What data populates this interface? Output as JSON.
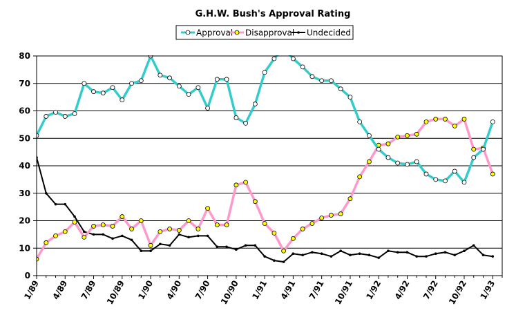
{
  "chart_data": {
    "type": "line",
    "title": "G.H.W. Bush's Approval Rating",
    "xlabel": "",
    "ylabel": "",
    "ylim": [
      0,
      80
    ],
    "yticks": [
      0,
      10,
      20,
      30,
      40,
      50,
      60,
      70,
      80
    ],
    "grid": true,
    "legend_position": "top-center",
    "x_tick_labels": [
      "1/89",
      "4/89",
      "7/89",
      "10/89",
      "1/90",
      "4/90",
      "7/90",
      "10/90",
      "1/91",
      "4/91",
      "7/91",
      "10/91",
      "1/92",
      "4/92",
      "7/92",
      "10/92",
      "1/93"
    ],
    "series": [
      {
        "name": "Approval",
        "color": "#33cccc",
        "marker": "circle",
        "marker_fill": "#ffffff",
        "points": [
          [
            0,
            51
          ],
          [
            1,
            58
          ],
          [
            2,
            59.5
          ],
          [
            3,
            58
          ],
          [
            4,
            59
          ],
          [
            5,
            70
          ],
          [
            6,
            67
          ],
          [
            7,
            66.5
          ],
          [
            8,
            68.5
          ],
          [
            9,
            64
          ],
          [
            10,
            70
          ],
          [
            11,
            71
          ],
          [
            12,
            80
          ],
          [
            13,
            73
          ],
          [
            14,
            72
          ],
          [
            15,
            69
          ],
          [
            16,
            66
          ],
          [
            17,
            68.5
          ],
          [
            18,
            61
          ],
          [
            19,
            71.5
          ],
          [
            20,
            71.5
          ],
          [
            21,
            57.5
          ],
          [
            22,
            55.5
          ],
          [
            23,
            62.5
          ],
          [
            24,
            74
          ],
          [
            25,
            79
          ],
          [
            25.5,
            81
          ],
          [
            26.5,
            81
          ],
          [
            27,
            79
          ],
          [
            28,
            76
          ],
          [
            29,
            72.5
          ],
          [
            30,
            71
          ],
          [
            31,
            71
          ],
          [
            32,
            68
          ],
          [
            33,
            65
          ],
          [
            34,
            56
          ],
          [
            35,
            51
          ],
          [
            36,
            46
          ],
          [
            37,
            43
          ],
          [
            38,
            41
          ],
          [
            39,
            40.5
          ],
          [
            40,
            41.5
          ],
          [
            41,
            37
          ],
          [
            42,
            35
          ],
          [
            43,
            34.5
          ],
          [
            44,
            38
          ],
          [
            45,
            34
          ],
          [
            46,
            43
          ],
          [
            47,
            46
          ],
          [
            48,
            56
          ]
        ]
      },
      {
        "name": "Disapproval",
        "color": "#ff99cc",
        "marker": "circle",
        "marker_fill": "#ffff00",
        "points": [
          [
            0,
            6
          ],
          [
            1,
            12
          ],
          [
            2,
            14.5
          ],
          [
            3,
            16
          ],
          [
            4,
            19.5
          ],
          [
            5,
            14
          ],
          [
            6,
            18
          ],
          [
            7,
            18.5
          ],
          [
            8,
            18
          ],
          [
            9,
            21.5
          ],
          [
            10,
            17
          ],
          [
            11,
            20
          ],
          [
            12,
            11
          ],
          [
            13,
            16
          ],
          [
            14,
            17
          ],
          [
            15,
            16.5
          ],
          [
            16,
            20
          ],
          [
            17,
            17
          ],
          [
            18,
            24.5
          ],
          [
            19,
            18.5
          ],
          [
            20,
            18.5
          ],
          [
            21,
            33
          ],
          [
            22,
            34
          ],
          [
            23,
            27
          ],
          [
            24,
            19
          ],
          [
            25,
            15.5
          ],
          [
            26,
            9
          ],
          [
            27,
            13.5
          ],
          [
            28,
            17
          ],
          [
            29,
            19
          ],
          [
            30,
            21
          ],
          [
            31,
            22
          ],
          [
            32,
            22.5
          ],
          [
            33,
            28
          ],
          [
            34,
            36
          ],
          [
            35,
            41.5
          ],
          [
            36,
            47.5
          ],
          [
            37,
            48
          ],
          [
            38,
            50.5
          ],
          [
            39,
            51
          ],
          [
            40,
            51.5
          ],
          [
            41,
            56
          ],
          [
            42,
            57
          ],
          [
            43,
            57
          ],
          [
            44,
            54.5
          ],
          [
            45,
            57
          ],
          [
            46,
            46
          ],
          [
            47,
            46.5
          ],
          [
            48,
            37
          ]
        ]
      },
      {
        "name": "Undecided",
        "color": "#000000",
        "marker": "dot",
        "marker_fill": "#000000",
        "points": [
          [
            0,
            43
          ],
          [
            1,
            30
          ],
          [
            2,
            26
          ],
          [
            3,
            26
          ],
          [
            4,
            21.5
          ],
          [
            5,
            16
          ],
          [
            6,
            15
          ],
          [
            7,
            15
          ],
          [
            8,
            13.5
          ],
          [
            9,
            14.5
          ],
          [
            10,
            13
          ],
          [
            11,
            9
          ],
          [
            12,
            9
          ],
          [
            13,
            11.5
          ],
          [
            14,
            11
          ],
          [
            15,
            15
          ],
          [
            16,
            14
          ],
          [
            17,
            14.5
          ],
          [
            18,
            14.5
          ],
          [
            19,
            10.5
          ],
          [
            20,
            10.5
          ],
          [
            21,
            9.5
          ],
          [
            22,
            11
          ],
          [
            23,
            11
          ],
          [
            24,
            7
          ],
          [
            25,
            5.5
          ],
          [
            26,
            5
          ],
          [
            27,
            8
          ],
          [
            28,
            7.5
          ],
          [
            29,
            8.5
          ],
          [
            30,
            8
          ],
          [
            31,
            7
          ],
          [
            32,
            9
          ],
          [
            33,
            7.5
          ],
          [
            34,
            8
          ],
          [
            35,
            7.5
          ],
          [
            36,
            6.5
          ],
          [
            37,
            9
          ],
          [
            38,
            8.5
          ],
          [
            39,
            8.5
          ],
          [
            40,
            7
          ],
          [
            41,
            7
          ],
          [
            42,
            8
          ],
          [
            43,
            8.5
          ],
          [
            44,
            7.5
          ],
          [
            45,
            9
          ],
          [
            46,
            11
          ],
          [
            47,
            7.5
          ],
          [
            48,
            7
          ]
        ]
      }
    ]
  }
}
